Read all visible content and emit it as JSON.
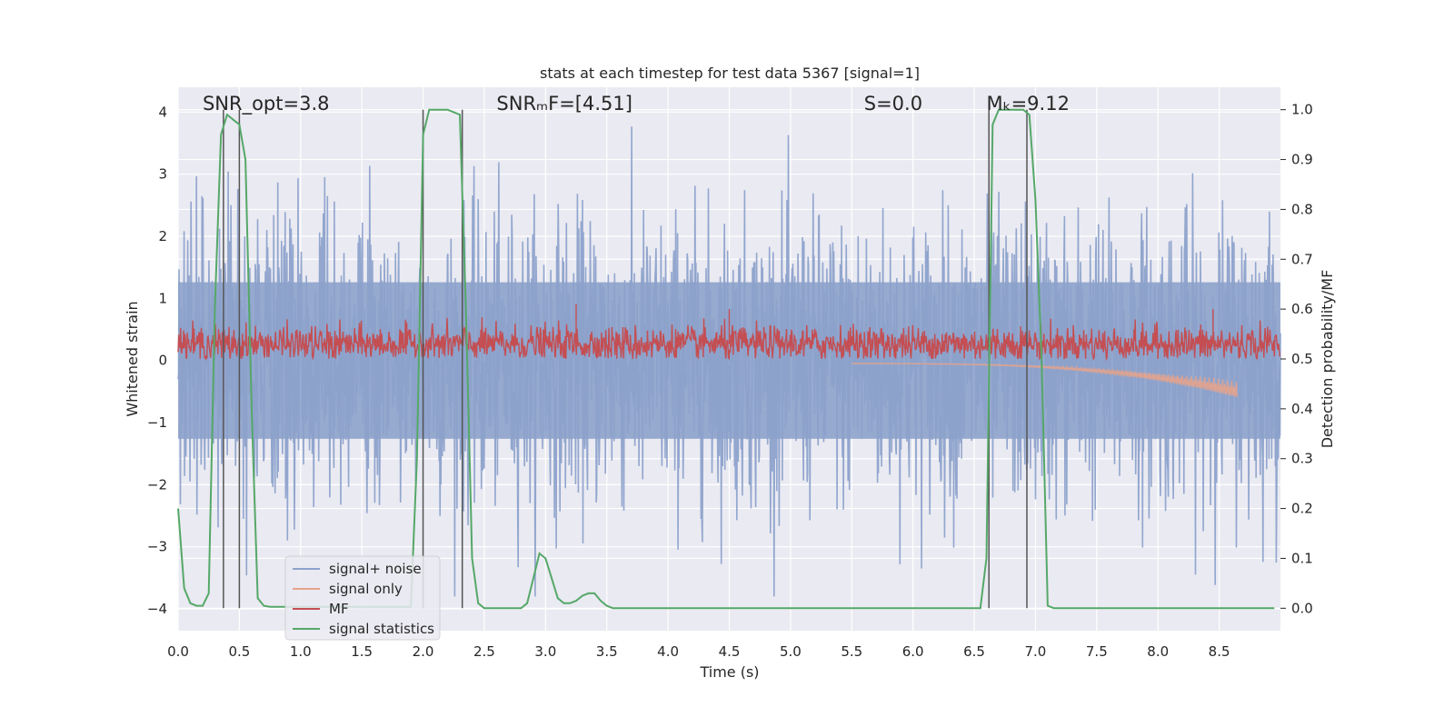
{
  "chart_data": {
    "type": "line",
    "title": "stats at each timestep for test data 5367 [signal=1]",
    "xlabel": "Time (s)",
    "ylabel": "Whitened strain",
    "ylabel_right": "Detection probability/MF",
    "xlim": [
      0.0,
      9.0
    ],
    "ylim": [
      -4.35,
      4.4
    ],
    "ylim_right": [
      -0.045,
      1.045
    ],
    "grid": true,
    "x_ticks": [
      "0.0",
      "0.5",
      "1.0",
      "1.5",
      "2.0",
      "2.5",
      "3.0",
      "3.5",
      "4.0",
      "4.5",
      "5.0",
      "5.5",
      "6.0",
      "6.5",
      "7.0",
      "7.5",
      "8.0",
      "8.5"
    ],
    "y_ticks": [
      "4",
      "3",
      "2",
      "1",
      "0",
      "−1",
      "−2",
      "−3",
      "−4"
    ],
    "y_ticks_right": [
      "1.0",
      "0.9",
      "0.8",
      "0.7",
      "0.6",
      "0.5",
      "0.4",
      "0.3",
      "0.2",
      "0.1",
      "0.0"
    ],
    "annotations": [
      {
        "text": "SNR_opt=3.8",
        "x": 0.2
      },
      {
        "text": "SNRₘF=[4.51]",
        "x": 2.6
      },
      {
        "text": "S=0.0",
        "x": 5.6
      },
      {
        "text": "Mₖ=9.12",
        "x": 6.6
      }
    ],
    "legend": {
      "placement": "lower-left",
      "entries": [
        "signal+ noise",
        "signal only",
        "MF",
        "signal statistics"
      ]
    },
    "series": [
      {
        "name": "signal+ noise",
        "color": "#8da2cb",
        "description_values": "whitened strain noise, range approx -3.8 to 3.9",
        "envelope_upper": 2.8,
        "envelope_lower": -2.8
      },
      {
        "name": "signal only",
        "color": "#e6a38c",
        "chirp_start": 5.5,
        "chirp_end": 8.65,
        "chirp_min": -0.55
      },
      {
        "name": "MF",
        "color": "#c44e52",
        "axis": "right",
        "baseline": 0.53,
        "peaks": [
          [
            3.25,
            0.61
          ],
          [
            8.45,
            0.6
          ],
          [
            4.5,
            0.6
          ]
        ]
      },
      {
        "name": "signal statistics",
        "color": "#55a868",
        "axis": "right",
        "x": [
          0.0,
          0.05,
          0.1,
          0.15,
          0.2,
          0.25,
          0.3,
          0.35,
          0.4,
          0.45,
          0.5,
          0.55,
          0.6,
          0.65,
          0.7,
          0.75,
          0.8,
          0.85,
          0.9,
          1.0,
          1.5,
          1.8,
          1.9,
          1.95,
          2.0,
          2.05,
          2.1,
          2.2,
          2.3,
          2.35,
          2.4,
          2.45,
          2.5,
          2.6,
          2.7,
          2.8,
          2.85,
          2.9,
          2.95,
          3.0,
          3.05,
          3.1,
          3.15,
          3.2,
          3.25,
          3.3,
          3.35,
          3.4,
          3.45,
          3.5,
          3.55,
          3.6,
          3.7,
          4.0,
          5.0,
          6.0,
          6.55,
          6.6,
          6.65,
          6.7,
          6.8,
          6.9,
          6.95,
          7.0,
          7.05,
          7.1,
          7.15,
          7.2,
          8.0,
          8.95
        ],
        "y": [
          0.2,
          0.04,
          0.01,
          0.005,
          0.005,
          0.03,
          0.6,
          0.95,
          0.99,
          0.98,
          0.97,
          0.9,
          0.4,
          0.02,
          0.005,
          0.003,
          0.003,
          0.003,
          0.003,
          0.003,
          0.003,
          0.003,
          0.003,
          0.3,
          0.95,
          1.0,
          1.0,
          1.0,
          0.99,
          0.6,
          0.1,
          0.01,
          0.0,
          0.0,
          0.0,
          0.0,
          0.01,
          0.06,
          0.11,
          0.1,
          0.06,
          0.02,
          0.01,
          0.01,
          0.015,
          0.025,
          0.03,
          0.03,
          0.015,
          0.005,
          0.0,
          0.0,
          0.0,
          0.0,
          0.0,
          0.0,
          0.0,
          0.1,
          0.97,
          1.0,
          1.0,
          1.0,
          0.99,
          0.82,
          0.5,
          0.005,
          0.0,
          0.0,
          0.0,
          0.0
        ]
      }
    ],
    "vertical_lines": [
      0.37,
      0.5,
      2.0,
      2.32,
      6.62,
      6.93
    ]
  }
}
